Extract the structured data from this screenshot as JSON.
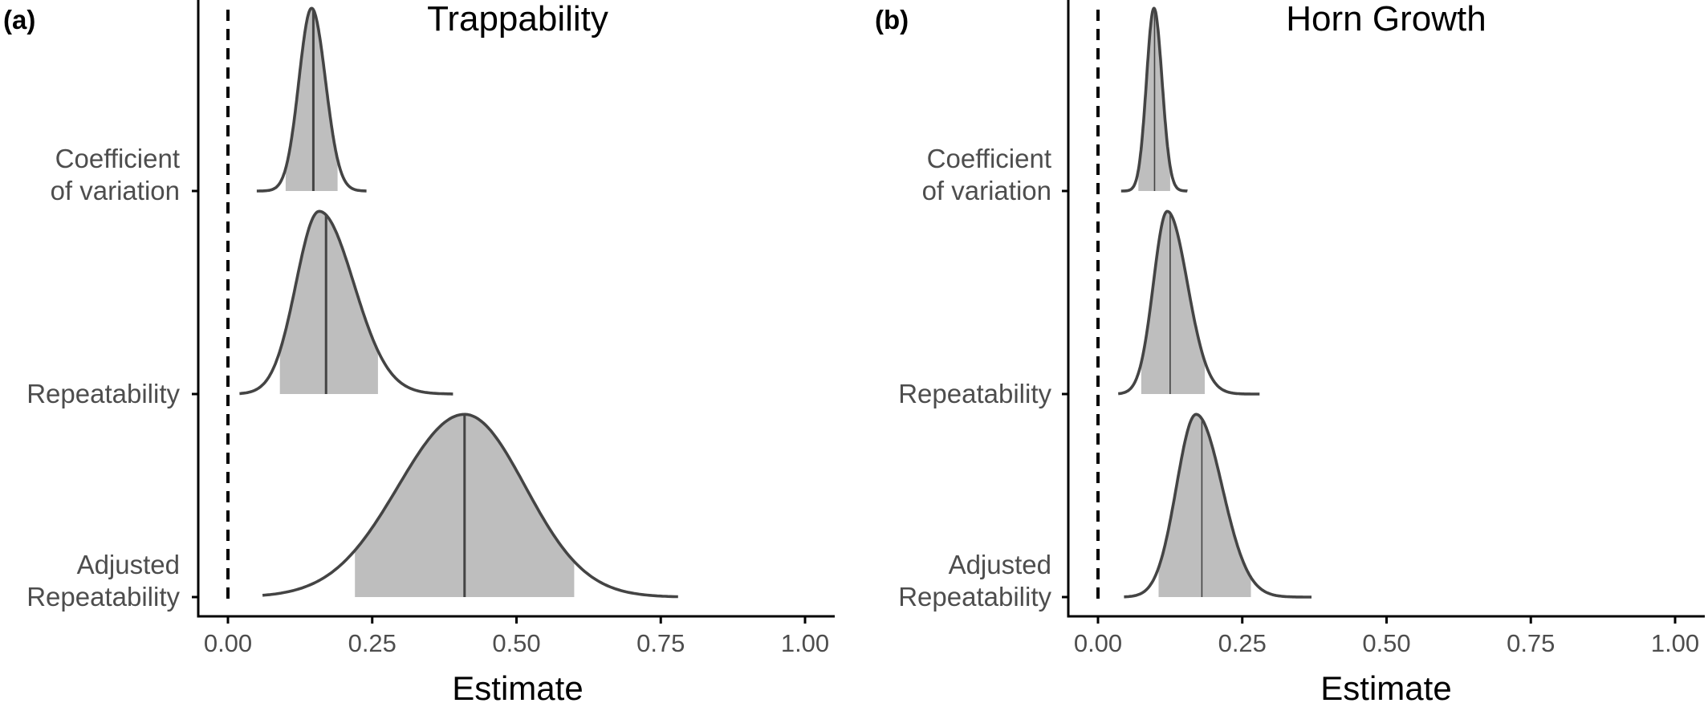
{
  "chart_data": [
    {
      "type": "density",
      "panel_label": "(a)",
      "title": "Trappability",
      "xlabel": "Estimate",
      "xlim": [
        0,
        1
      ],
      "xticks": [
        0,
        0.25,
        0.5,
        0.75,
        1
      ],
      "xtick_labels": [
        "0.00",
        "0.25",
        "0.50",
        "0.75",
        "1.00"
      ],
      "reference_line": {
        "x": 0,
        "style": "dashed"
      },
      "categories": [
        {
          "label_lines": [
            "Coefficient",
            "of variation"
          ],
          "lo": 0.05,
          "hi": 0.24,
          "peak": 0.145,
          "sd_left": 0.022,
          "sd_right": 0.024,
          "median": 0.148,
          "ci": [
            0.1,
            0.19
          ],
          "height": 0.9
        },
        {
          "label_lines": [
            "Repeatability"
          ],
          "lo": 0.02,
          "hi": 0.39,
          "peak": 0.158,
          "sd_left": 0.04,
          "sd_right": 0.06,
          "median": 0.17,
          "ci": [
            0.09,
            0.26
          ],
          "height": 0.9
        },
        {
          "label_lines": [
            "Adjusted",
            "Repeatability"
          ],
          "lo": 0.06,
          "hi": 0.78,
          "peak": 0.41,
          "sd_left": 0.115,
          "sd_right": 0.105,
          "median": 0.41,
          "ci": [
            0.22,
            0.6
          ],
          "height": 0.9
        }
      ]
    },
    {
      "type": "density",
      "panel_label": "(b)",
      "title": "Horn Growth",
      "xlabel": "Estimate",
      "xlim": [
        0,
        1
      ],
      "xticks": [
        0,
        0.25,
        0.5,
        0.75,
        1
      ],
      "xtick_labels": [
        "0.00",
        "0.25",
        "0.50",
        "0.75",
        "1.00"
      ],
      "reference_line": {
        "x": 0,
        "style": "dashed"
      },
      "categories": [
        {
          "label_lines": [
            "Coefficient",
            "of variation"
          ],
          "lo": 0.04,
          "hi": 0.155,
          "peak": 0.097,
          "sd_left": 0.013,
          "sd_right": 0.014,
          "median": 0.098,
          "ci": [
            0.07,
            0.125
          ],
          "height": 0.9
        },
        {
          "label_lines": [
            "Repeatability"
          ],
          "lo": 0.035,
          "hi": 0.28,
          "peak": 0.12,
          "sd_left": 0.024,
          "sd_right": 0.035,
          "median": 0.125,
          "ci": [
            0.075,
            0.185
          ],
          "height": 0.9
        },
        {
          "label_lines": [
            "Adjusted",
            "Repeatability"
          ],
          "lo": 0.045,
          "hi": 0.37,
          "peak": 0.17,
          "sd_left": 0.034,
          "sd_right": 0.045,
          "median": 0.18,
          "ci": [
            0.105,
            0.265
          ],
          "height": 0.9
        }
      ]
    }
  ],
  "colors": {
    "fill": "#bebebe",
    "outline": "#444444",
    "axis": "#000000",
    "tick_text": "#4d4d4d"
  }
}
